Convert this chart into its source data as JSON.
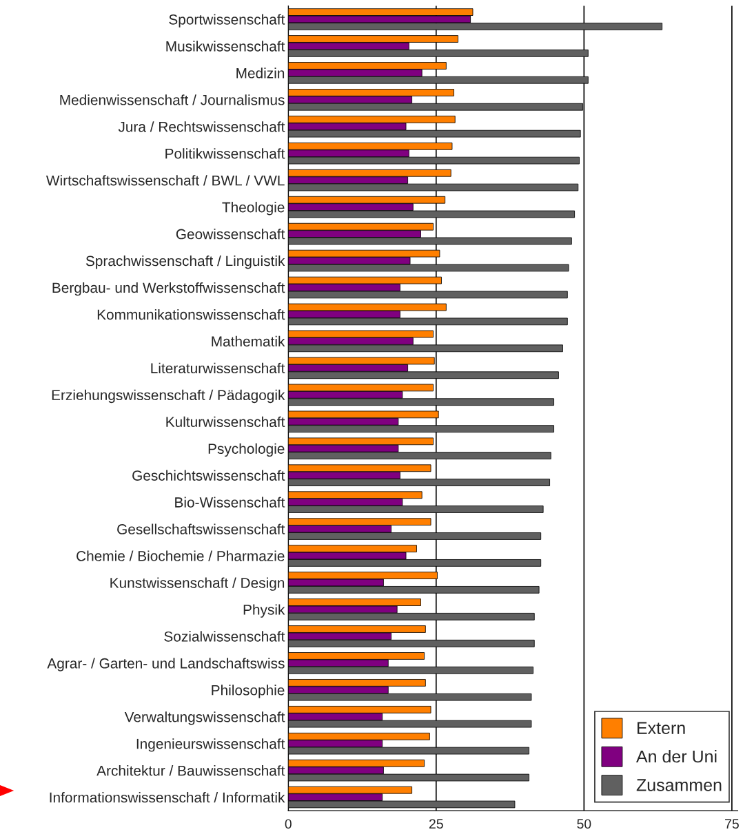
{
  "chart_data": {
    "type": "bar",
    "orientation": "horizontal",
    "categories": [
      "Sportwissenschaft",
      "Musikwissenschaft",
      "Medizin",
      "Medienwissenschaft / Journalismus",
      "Jura / Rechtswissenschaft",
      "Politikwissenschaft",
      "Wirtschaftswissenschaft / BWL / VWL",
      "Theologie",
      "Geowissenschaft",
      "Sprachwissenschaft / Linguistik",
      "Bergbau- und Werkstoffwissenschaft",
      "Kommunikationswissenschaft",
      "Mathematik",
      "Literaturwissenschaft",
      "Erziehungswissenschaft / Pädagogik",
      "Kulturwissenschaft",
      "Psychologie",
      "Geschichtswissenschaft",
      "Bio-Wissenschaft",
      "Gesellschaftswissenschaft",
      "Chemie / Biochemie / Pharmazie",
      "Kunstwissenschaft / Design",
      "Physik",
      "Sozialwissenschaft",
      "Agrar- / Garten- und Landschaftswiss",
      "Philosophie",
      "Verwaltungswissenschaft",
      "Ingenieurswissenschaft",
      "Architektur / Bauwissenschaft",
      "Informationswissenschaft / Informatik"
    ],
    "series": [
      {
        "name": "Extern",
        "color": "#ff7f00",
        "values": [
          31.2,
          28.7,
          26.7,
          28.0,
          28.2,
          27.7,
          27.5,
          26.5,
          24.5,
          25.6,
          25.9,
          26.7,
          24.5,
          24.7,
          24.5,
          25.4,
          24.5,
          24.1,
          22.6,
          24.1,
          21.7,
          25.2,
          22.4,
          23.2,
          23.0,
          23.2,
          24.1,
          23.9,
          23.0,
          20.9
        ]
      },
      {
        "name": "An der Uni",
        "color": "#800080",
        "values": [
          30.8,
          20.4,
          22.6,
          20.9,
          19.9,
          20.4,
          20.2,
          21.1,
          22.4,
          20.6,
          18.9,
          18.9,
          21.1,
          20.2,
          19.3,
          18.6,
          18.6,
          18.9,
          19.3,
          17.4,
          19.9,
          16.1,
          18.4,
          17.4,
          16.9,
          16.9,
          15.9,
          15.9,
          16.1,
          15.9
        ]
      },
      {
        "name": "Zusammen",
        "color": "#606060",
        "values": [
          63.2,
          50.7,
          50.7,
          49.8,
          49.4,
          49.2,
          49.0,
          48.4,
          47.9,
          47.4,
          47.2,
          47.2,
          46.4,
          45.7,
          44.9,
          44.9,
          44.4,
          44.2,
          43.1,
          42.7,
          42.7,
          42.4,
          41.6,
          41.6,
          41.4,
          41.1,
          41.1,
          40.7,
          40.7,
          38.3
        ]
      }
    ],
    "xlim": [
      0,
      76
    ],
    "xticks": [
      0,
      25,
      50,
      75
    ],
    "grid": "x",
    "legend": "bottom right"
  }
}
